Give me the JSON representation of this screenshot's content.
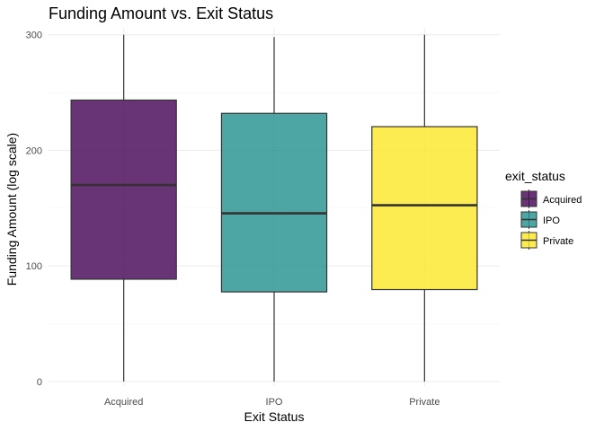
{
  "chart_data": {
    "type": "boxplot",
    "title": "Funding Amount vs. Exit Status",
    "xlabel": "Exit Status",
    "ylabel": "Funding Amount (log scale)",
    "ylim": [
      -4,
      306
    ],
    "y_ticks": [
      0,
      100,
      200,
      300
    ],
    "grid": true,
    "legend": {
      "title": "exit_status",
      "position": "right"
    },
    "categories": [
      "Acquired",
      "IPO",
      "Private"
    ],
    "boxes": [
      {
        "category": "Acquired",
        "min": 0,
        "q1": 88.5,
        "median": 170,
        "q3": 243.5,
        "max": 300,
        "color": "#440154"
      },
      {
        "category": "IPO",
        "min": 0,
        "q1": 77.5,
        "median": 145.5,
        "q3": 232,
        "max": 298,
        "color": "#21908C"
      },
      {
        "category": "Private",
        "min": 0,
        "q1": 79.5,
        "median": 152.5,
        "q3": 220.5,
        "max": 300,
        "color": "#FDE725"
      }
    ]
  }
}
